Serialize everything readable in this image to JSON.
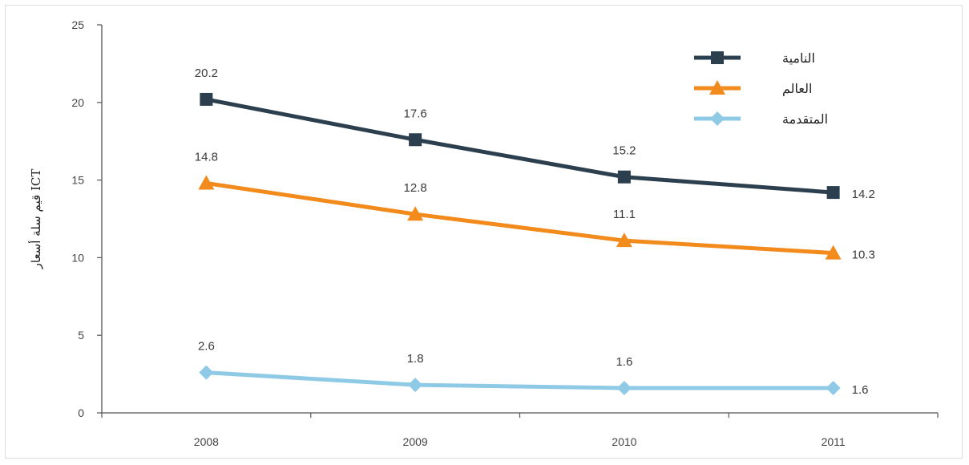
{
  "chart_data": {
    "type": "line",
    "title": "",
    "xlabel": "",
    "ylabel": "قيم سلة أسعار ICT",
    "categories": [
      "2008",
      "2009",
      "2010",
      "2011"
    ],
    "ylim": [
      0,
      25
    ],
    "yticks": [
      0,
      5,
      10,
      15,
      20,
      25
    ],
    "grid": false,
    "legend_position": "top-right",
    "series": [
      {
        "name": "النامية",
        "values": [
          20.2,
          17.6,
          15.2,
          14.2
        ],
        "labels": [
          "20.2",
          "17.6",
          "15.2",
          "14.2"
        ],
        "color": "#2b3f4e",
        "marker": "square"
      },
      {
        "name": "العالم",
        "values": [
          14.8,
          12.8,
          11.1,
          10.3
        ],
        "labels": [
          "14.8",
          "12.8",
          "11.1",
          "10.3"
        ],
        "color": "#f28a1c",
        "marker": "triangle"
      },
      {
        "name": "المتقدمة",
        "values": [
          2.6,
          1.8,
          1.6,
          1.6
        ],
        "labels": [
          "2.6",
          "1.8",
          "1.6",
          "1.6"
        ],
        "color": "#8ecae6",
        "marker": "diamond"
      }
    ]
  }
}
